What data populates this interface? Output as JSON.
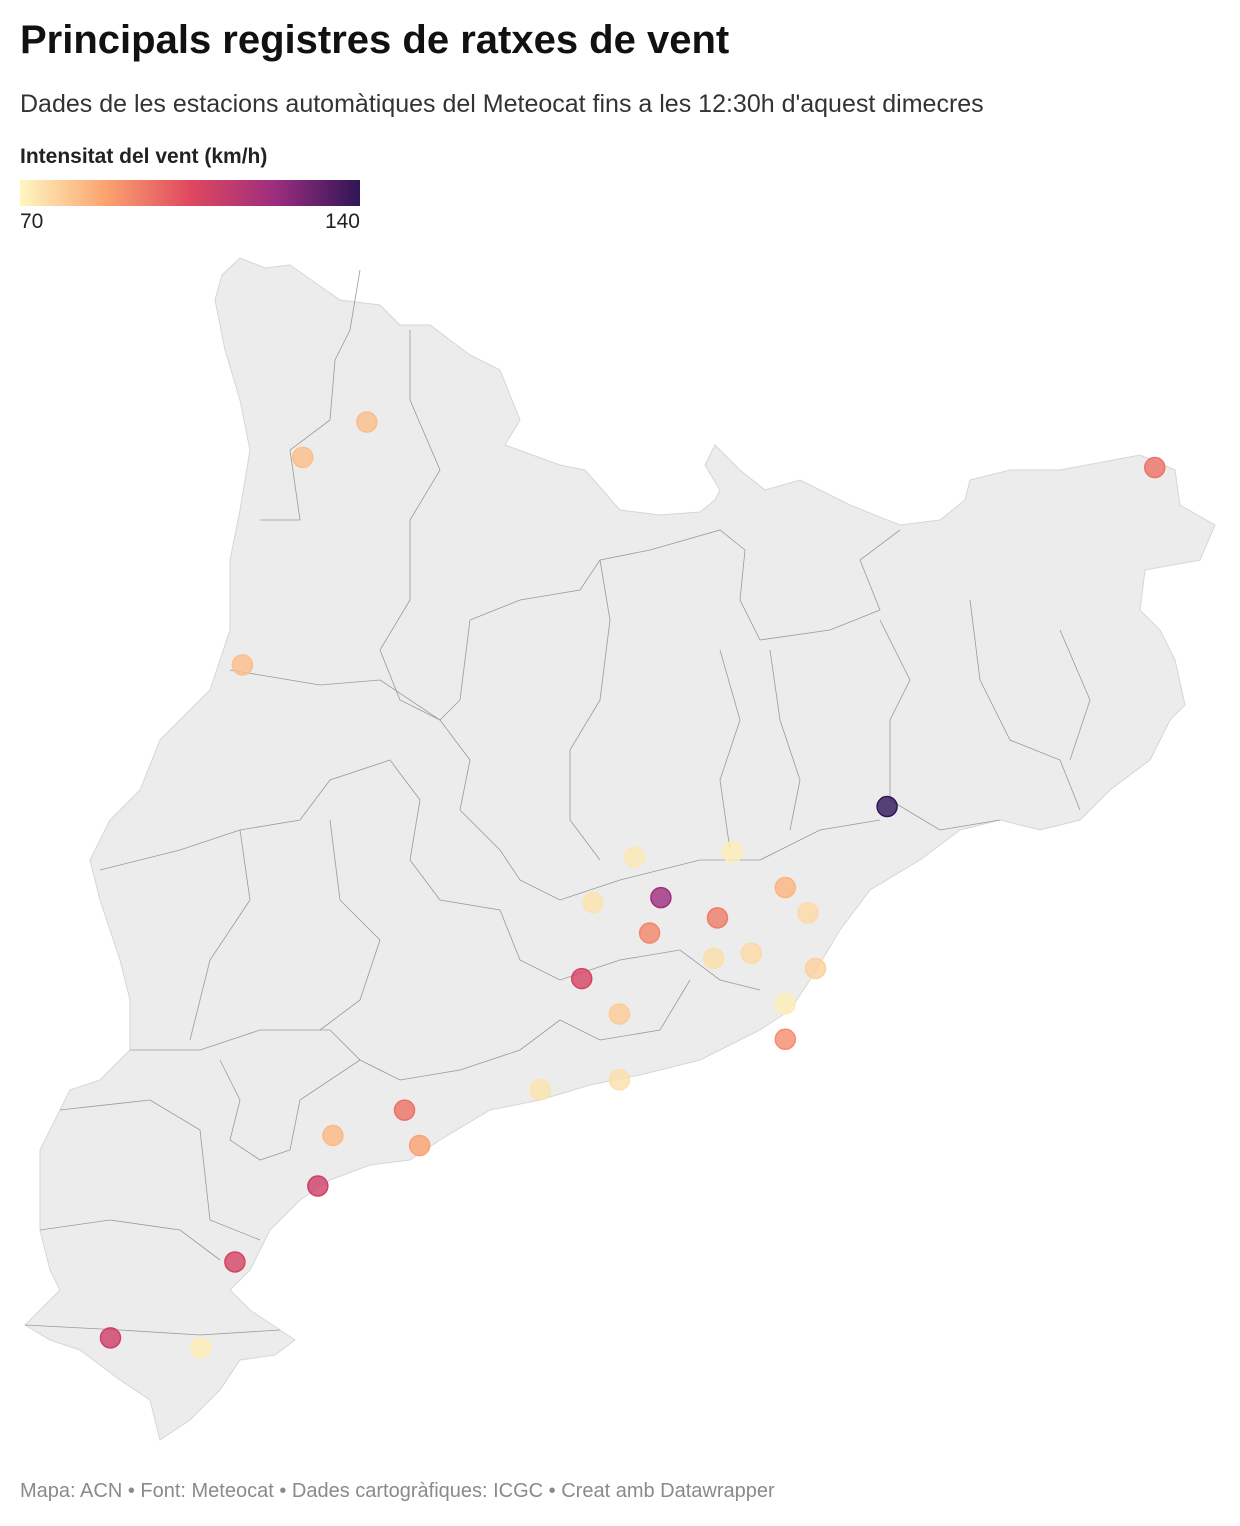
{
  "header": {
    "title": "Principals registres de ratxes de vent",
    "subtitle": "Dades de les estacions automàtiques del Meteocat fins a les 12:30h d'aquest dimecres"
  },
  "legend": {
    "title": "Intensitat del vent (km/h)",
    "min": 70,
    "max": 140,
    "colors": [
      "#fef6c1",
      "#fba46f",
      "#e0485f",
      "#9d2d7f",
      "#2f1656"
    ]
  },
  "stations": {
    "lon": [
      1.08,
      0.91,
      0.75,
      3.17,
      2.46,
      1.79,
      2.05,
      1.68,
      1.86,
      2.19,
      2.25,
      2.01,
      1.83,
      2.0,
      2.1,
      2.27,
      1.65,
      2.19,
      1.75,
      2.19,
      1.54,
      1.75,
      1.18,
      0.99,
      1.22,
      0.95,
      0.73,
      0.4,
      0.64
    ],
    "lat": [
      42.53,
      42.46,
      42.05,
      42.44,
      41.77,
      41.67,
      41.68,
      41.58,
      41.59,
      41.61,
      41.56,
      41.55,
      41.52,
      41.47,
      41.48,
      41.45,
      41.43,
      41.38,
      41.36,
      41.31,
      41.21,
      41.23,
      41.17,
      41.12,
      41.1,
      41.02,
      40.87,
      40.72,
      40.7
    ],
    "values": [
      82,
      82,
      82,
      97,
      140,
      73,
      72,
      74,
      122,
      84,
      76,
      95,
      93,
      75,
      76,
      78,
      108,
      72,
      79,
      92,
      74,
      75,
      97,
      83,
      88,
      110,
      108,
      110,
      72
    ]
  },
  "footer": "Mapa: ACN • Font: Meteocat • Dades cartogràfiques: ICGC  • Creat amb Datawrapper"
}
